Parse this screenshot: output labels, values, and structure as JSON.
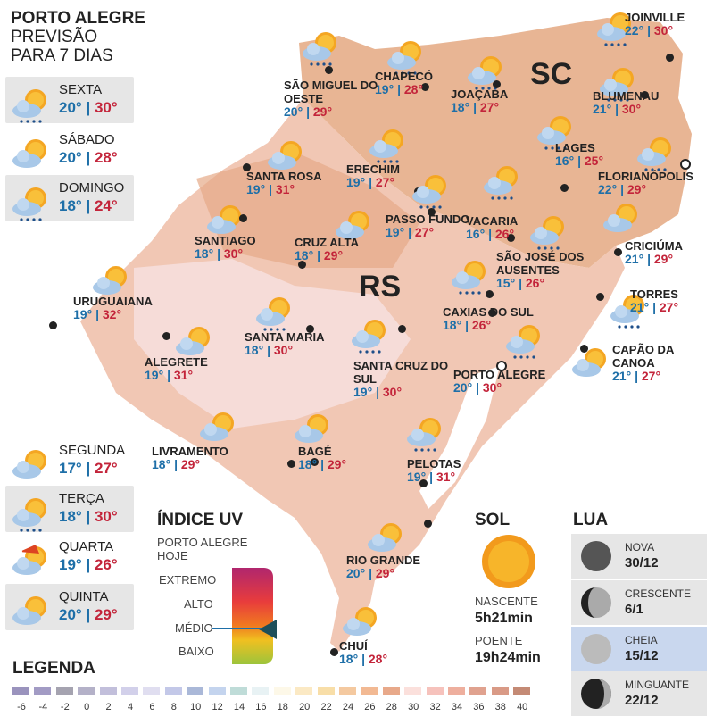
{
  "header": {
    "line1": "PORTO ALEGRE",
    "line2": "PREVISÃO",
    "line3": "PARA 7 DIAS"
  },
  "forecast": [
    {
      "day": "SEXTA",
      "min": "20°",
      "max": "30°",
      "icon": "sun-cloud-rain-icon"
    },
    {
      "day": "SÁBADO",
      "min": "20°",
      "max": "28°",
      "icon": "cloud-sun-icon"
    },
    {
      "day": "DOMINGO",
      "min": "18°",
      "max": "24°",
      "icon": "sun-cloud-rain-icon"
    },
    {
      "day": "SEGUNDA",
      "min": "17°",
      "max": "27°",
      "icon": "cloud-sun-icon"
    },
    {
      "day": "TERÇA",
      "min": "18°",
      "max": "30°",
      "icon": "sun-cloud-rain-icon"
    },
    {
      "day": "QUARTA",
      "min": "19°",
      "max": "26°",
      "icon": "santa-sun-cloud-icon"
    },
    {
      "day": "QUINTA",
      "min": "20°",
      "max": "29°",
      "icon": "cloud-sun-icon"
    }
  ],
  "separator": "|",
  "states": {
    "sc": "SC",
    "rs": "RS"
  },
  "cities": [
    {
      "name": "JOINVILLE",
      "min": "22°",
      "max": "30°"
    },
    {
      "name": "CHAPECÓ",
      "min": "19°",
      "max": "28°"
    },
    {
      "name": "SÃO MIGUEL DO OESTE",
      "min": "20°",
      "max": "29°"
    },
    {
      "name": "JOAÇABA",
      "min": "18°",
      "max": "27°"
    },
    {
      "name": "BLUMENAU",
      "min": "21°",
      "max": "30°"
    },
    {
      "name": "LAGES",
      "min": "16°",
      "max": "25°"
    },
    {
      "name": "FLORIANÓPOLIS",
      "min": "22°",
      "max": "29°"
    },
    {
      "name": "SANTA ROSA",
      "min": "19°",
      "max": "31°"
    },
    {
      "name": "ERECHIM",
      "min": "19°",
      "max": "27°"
    },
    {
      "name": "VACARIA",
      "min": "16°",
      "max": "26°"
    },
    {
      "name": "PASSO FUNDO",
      "min": "19°",
      "max": "27°"
    },
    {
      "name": "CRICIÚMA",
      "min": "21°",
      "max": "29°"
    },
    {
      "name": "SANTIAGO",
      "min": "18°",
      "max": "30°"
    },
    {
      "name": "CRUZ ALTA",
      "min": "18°",
      "max": "29°"
    },
    {
      "name": "SÃO JOSÉ DOS AUSENTES",
      "min": "15°",
      "max": "26°"
    },
    {
      "name": "URUGUAIANA",
      "min": "19°",
      "max": "32°"
    },
    {
      "name": "CAXIAS DO SUL",
      "min": "18°",
      "max": "26°"
    },
    {
      "name": "TORRES",
      "min": "21°",
      "max": "27°"
    },
    {
      "name": "SANTA MARIA",
      "min": "18°",
      "max": "30°"
    },
    {
      "name": "ALEGRETE",
      "min": "19°",
      "max": "31°"
    },
    {
      "name": "SANTA CRUZ DO SUL",
      "min": "19°",
      "max": "30°"
    },
    {
      "name": "CAPÃO DA CANOA",
      "min": "21°",
      "max": "27°"
    },
    {
      "name": "PORTO ALEGRE",
      "min": "20°",
      "max": "30°"
    },
    {
      "name": "LIVRAMENTO",
      "min": "18°",
      "max": "29°"
    },
    {
      "name": "BAGÉ",
      "min": "18°",
      "max": "29°"
    },
    {
      "name": "PELOTAS",
      "min": "19°",
      "max": "31°"
    },
    {
      "name": "RIO GRANDE",
      "min": "20°",
      "max": "29°"
    },
    {
      "name": "CHUÍ",
      "min": "18°",
      "max": "28°"
    }
  ],
  "uv": {
    "title": "ÍNDICE UV",
    "subtitle1": "PORTO ALEGRE",
    "subtitle2": "HOJE",
    "levels": [
      "EXTREMO",
      "ALTO",
      "MÉDIO",
      "BAIXO"
    ],
    "current": "MÉDIO"
  },
  "sun": {
    "title": "SOL",
    "rise_label": "NASCENTE",
    "rise": "5h21min",
    "set_label": "POENTE",
    "set": "19h24min"
  },
  "moon": {
    "title": "LUA",
    "phases": [
      {
        "name": "NOVA",
        "date": "30/12"
      },
      {
        "name": "CRESCENTE",
        "date": "6/1"
      },
      {
        "name": "CHEIA",
        "date": "15/12"
      },
      {
        "name": "MINGUANTE",
        "date": "22/12"
      }
    ],
    "current": "CHEIA"
  },
  "legend": {
    "title": "LEGENDA",
    "ticks": [
      "-6",
      "-4",
      "-2",
      "0",
      "2",
      "4",
      "6",
      "8",
      "10",
      "12",
      "14",
      "16",
      "18",
      "20",
      "22",
      "24",
      "26",
      "28",
      "30",
      "32",
      "34",
      "36",
      "38",
      "40"
    ],
    "colors": [
      "#9a93bd",
      "#a29bc4",
      "#a5a3b0",
      "#b4b1c8",
      "#c2bfdb",
      "#d2d0ea",
      "#e0def0",
      "#c3c8e8",
      "#aab8d8",
      "#c4d4ee",
      "#bfdcd8",
      "#e8f2f4",
      "#fdf8e8",
      "#fbe9c4",
      "#f8dea8",
      "#f4c9a0",
      "#f2b993",
      "#e8a98a",
      "#fbe0dc",
      "#f6c2bc",
      "#eeaf9e",
      "#e0a28f",
      "#d99a86",
      "#c48a75"
    ]
  }
}
